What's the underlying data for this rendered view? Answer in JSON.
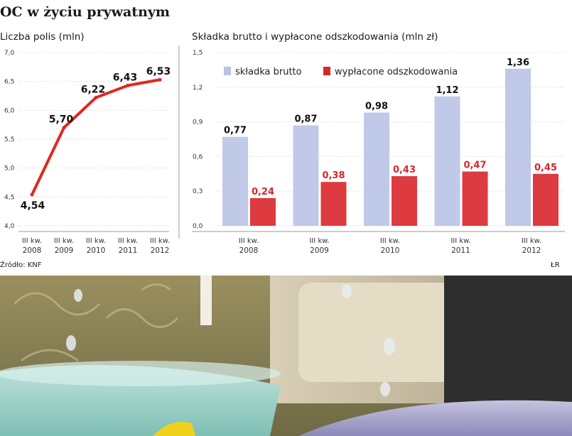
{
  "title": "OC w życiu prywatnym",
  "source": "Źródło: KNF",
  "credit": "ŁR",
  "colors": {
    "line": "#e0281e",
    "skladka": "#b9c3e6",
    "wyplacone": "#d9262a",
    "value_red": "#d9262a",
    "text": "#1a1a1a"
  },
  "chart_data": [
    {
      "type": "line",
      "title": "Liczba polis (mln)",
      "categories": [
        "III kw.\n2008",
        "III kw.\n2009",
        "III kw.\n2010",
        "III kw.\n2011",
        "III kw.\n2012"
      ],
      "values": [
        4.54,
        5.7,
        6.22,
        6.43,
        6.53
      ],
      "data_labels": [
        "4,54",
        "5,70",
        "6,22",
        "6,43",
        "6,53"
      ],
      "y_ticks": [
        "7,0",
        "6,5",
        "6,0",
        "5,5",
        "5,0",
        "4,5",
        "4,0"
      ],
      "ylim": [
        4.0,
        7.0
      ],
      "grid": true
    },
    {
      "type": "bar",
      "title": "Składka brutto i wypłacone odszkodowania (mln zł)",
      "categories": [
        "III kw.\n2008",
        "III kw.\n2009",
        "III kw.\n2010",
        "III kw.\n2011",
        "III kw.\n2012"
      ],
      "series": [
        {
          "name": "składka brutto",
          "values": [
            0.77,
            0.87,
            0.98,
            1.12,
            1.36
          ],
          "data_labels": [
            "0,77",
            "0,87",
            "0,98",
            "1,12",
            "1,36"
          ]
        },
        {
          "name": "wypłacone odszkodowania",
          "values": [
            0.24,
            0.38,
            0.43,
            0.47,
            0.45
          ],
          "data_labels": [
            "0,24",
            "0,38",
            "0,43",
            "0,47",
            "0,45"
          ]
        }
      ],
      "y_ticks": [
        "1,5",
        "1,2",
        "0,9",
        "0,6",
        "0,3",
        "0,0"
      ],
      "ylim": [
        0,
        1.5
      ],
      "legend": "top-left",
      "grid": true
    }
  ]
}
